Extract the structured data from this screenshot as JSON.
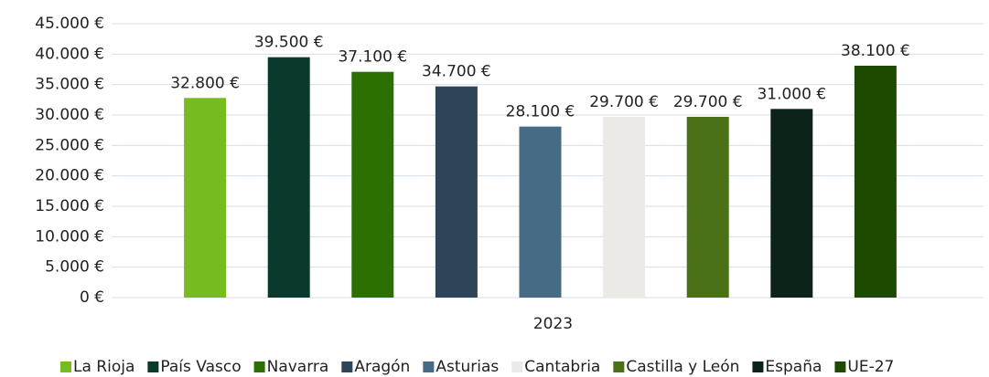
{
  "chart_data": {
    "type": "bar",
    "categories": [
      "2023"
    ],
    "series": [
      {
        "name": "La Rioja",
        "color": "#76bc21",
        "values": [
          32800
        ],
        "value_labels": [
          "32.800 €"
        ]
      },
      {
        "name": "País Vasco",
        "color": "#0a3a2e",
        "values": [
          39500
        ],
        "value_labels": [
          "39.500 €"
        ]
      },
      {
        "name": "Navarra",
        "color": "#2b7000",
        "values": [
          37100
        ],
        "value_labels": [
          "37.100 €"
        ]
      },
      {
        "name": "Aragón",
        "color": "#2e4458",
        "values": [
          34700
        ],
        "value_labels": [
          "34.700 €"
        ]
      },
      {
        "name": "Asturias",
        "color": "#466b84",
        "values": [
          28100
        ],
        "value_labels": [
          "28.100 €"
        ]
      },
      {
        "name": "Cantabria",
        "color": "#eceae6",
        "values": [
          29700
        ],
        "value_labels": [
          "29.700 €"
        ]
      },
      {
        "name": "Castilla y León",
        "color": "#4a7018",
        "values": [
          29700
        ],
        "value_labels": [
          "29.700 €"
        ]
      },
      {
        "name": "España",
        "color": "#0b2318",
        "values": [
          31000
        ],
        "value_labels": [
          "31.000 €"
        ]
      },
      {
        "name": "UE-27",
        "color": "#1e4a00",
        "values": [
          38100
        ],
        "value_labels": [
          "38.100 €"
        ]
      }
    ],
    "ylim": [
      0,
      45000
    ],
    "yticks": [
      {
        "value": 0,
        "label": "0 €"
      },
      {
        "value": 5000,
        "label": "5.000 €"
      },
      {
        "value": 10000,
        "label": "10.000 €"
      },
      {
        "value": 15000,
        "label": "15.000 €"
      },
      {
        "value": 20000,
        "label": "20.000 €"
      },
      {
        "value": 25000,
        "label": "25.000 €"
      },
      {
        "value": 30000,
        "label": "30.000 €"
      },
      {
        "value": 35000,
        "label": "35.000 €"
      },
      {
        "value": 40000,
        "label": "40.000 €"
      },
      {
        "value": 45000,
        "label": "45.000 €"
      }
    ],
    "grid": true,
    "legend": "bottom"
  }
}
